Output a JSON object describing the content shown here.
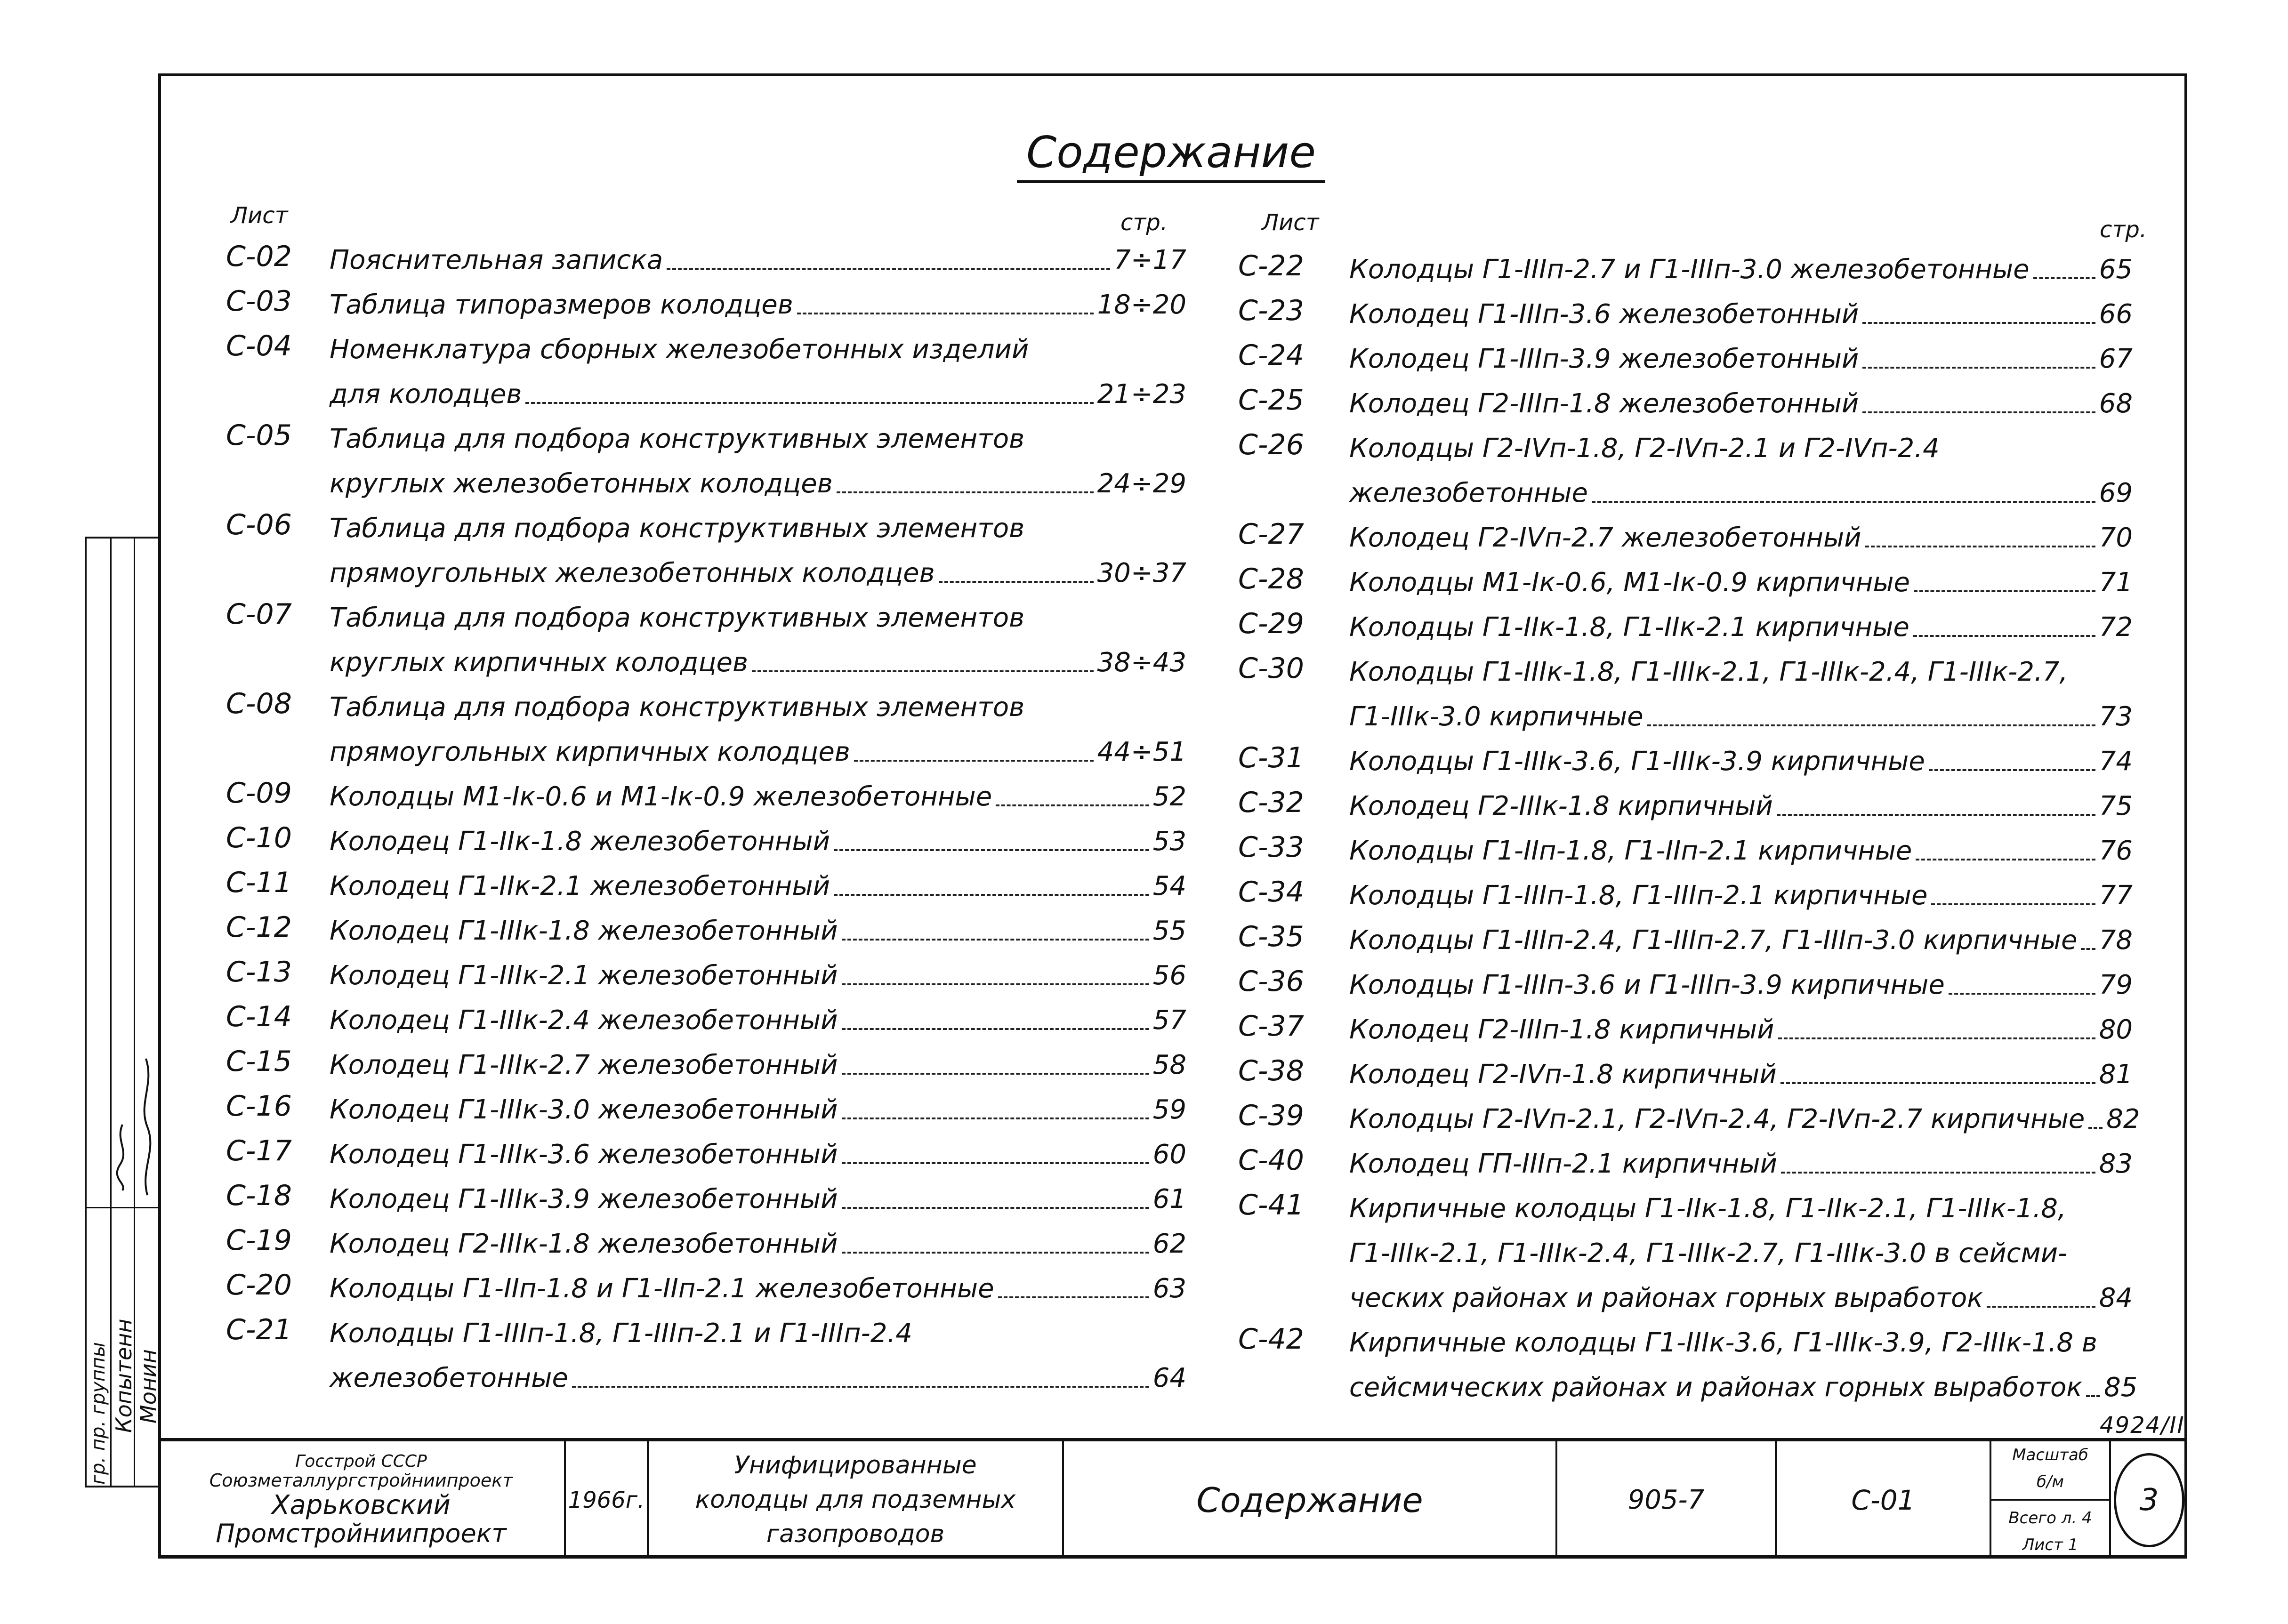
{
  "title": "Содержание",
  "headers": {
    "sheet": "Лист",
    "page": "стр."
  },
  "left_rows": [
    {
      "code": "С-02",
      "text": "Пояснительная записка",
      "page": "7÷17"
    },
    {
      "code": "С-03",
      "text": "Таблица типоразмеров колодцев",
      "page": "18÷20"
    },
    {
      "code": "С-04",
      "text": "Номенклатура сборных железобетонных изделий",
      "page": ""
    },
    {
      "code": "",
      "text": "для колодцев",
      "page": "21÷23"
    },
    {
      "code": "С-05",
      "text": "Таблица для подбора конструктивных элементов",
      "page": ""
    },
    {
      "code": "",
      "text": "круглых железобетонных колодцев",
      "page": "24÷29"
    },
    {
      "code": "С-06",
      "text": "Таблица для подбора конструктивных элементов",
      "page": ""
    },
    {
      "code": "",
      "text": "прямоугольных железобетонных колодцев",
      "page": "30÷37"
    },
    {
      "code": "С-07",
      "text": "Таблица для подбора конструктивных элементов",
      "page": ""
    },
    {
      "code": "",
      "text": "круглых кирпичных колодцев",
      "page": "38÷43"
    },
    {
      "code": "С-08",
      "text": "Таблица для подбора конструктивных элементов",
      "page": ""
    },
    {
      "code": "",
      "text": "прямоугольных кирпичных колодцев",
      "page": "44÷51"
    },
    {
      "code": "С-09",
      "text": "Колодцы М1-Iк-0.6 и М1-Iк-0.9 железобетонные",
      "page": "52"
    },
    {
      "code": "С-10",
      "text": "Колодец Г1-IIк-1.8 железобетонный",
      "page": "53"
    },
    {
      "code": "С-11",
      "text": "Колодец Г1-IIк-2.1 железобетонный",
      "page": "54"
    },
    {
      "code": "С-12",
      "text": "Колодец Г1-IIIк-1.8 железобетонный",
      "page": "55"
    },
    {
      "code": "С-13",
      "text": "Колодец Г1-IIIк-2.1 железобетонный",
      "page": "56"
    },
    {
      "code": "С-14",
      "text": "Колодец Г1-IIIк-2.4 железобетонный",
      "page": "57"
    },
    {
      "code": "С-15",
      "text": "Колодец Г1-IIIк-2.7 железобетонный",
      "page": "58"
    },
    {
      "code": "С-16",
      "text": "Колодец Г1-IIIк-3.0 железобетонный",
      "page": "59"
    },
    {
      "code": "С-17",
      "text": "Колодец Г1-IIIк-3.6 железобетонный",
      "page": "60"
    },
    {
      "code": "С-18",
      "text": "Колодец Г1-IIIк-3.9 железобетонный",
      "page": "61"
    },
    {
      "code": "С-19",
      "text": "Колодец Г2-IIIк-1.8 железобетонный",
      "page": "62"
    },
    {
      "code": "С-20",
      "text": "Колодцы Г1-IIп-1.8 и Г1-IIп-2.1 железобетонные",
      "page": "63"
    },
    {
      "code": "С-21",
      "text": "Колодцы Г1-IIIп-1.8, Г1-IIIп-2.1 и Г1-IIIп-2.4",
      "page": ""
    },
    {
      "code": "",
      "text": "железобетонные",
      "page": "64"
    }
  ],
  "right_rows": [
    {
      "code": "С-22",
      "text": "Колодцы Г1-IIIп-2.7 и Г1-IIIп-3.0 железобетонные",
      "page": "65"
    },
    {
      "code": "С-23",
      "text": "Колодец Г1-IIIп-3.6 железобетонный",
      "page": "66"
    },
    {
      "code": "С-24",
      "text": "Колодец Г1-IIIп-3.9 железобетонный",
      "page": "67"
    },
    {
      "code": "С-25",
      "text": "Колодец Г2-IIIп-1.8 железобетонный",
      "page": "68"
    },
    {
      "code": "С-26",
      "text": "Колодцы Г2-IVп-1.8, Г2-IVп-2.1 и Г2-IVп-2.4",
      "page": ""
    },
    {
      "code": "",
      "text": "железобетонные",
      "page": "69"
    },
    {
      "code": "С-27",
      "text": "Колодец Г2-IVп-2.7 железобетонный",
      "page": "70"
    },
    {
      "code": "С-28",
      "text": "Колодцы М1-Iк-0.6, М1-Iк-0.9 кирпичные",
      "page": "71"
    },
    {
      "code": "С-29",
      "text": "Колодцы Г1-IIк-1.8, Г1-IIк-2.1 кирпичные",
      "page": "72"
    },
    {
      "code": "С-30",
      "text": "Колодцы Г1-IIIк-1.8, Г1-IIIк-2.1, Г1-IIIк-2.4, Г1-IIIк-2.7,",
      "page": ""
    },
    {
      "code": "",
      "text": "Г1-IIIк-3.0 кирпичные",
      "page": "73"
    },
    {
      "code": "С-31",
      "text": "Колодцы Г1-IIIк-3.6, Г1-IIIк-3.9 кирпичные",
      "page": "74"
    },
    {
      "code": "С-32",
      "text": "Колодец Г2-IIIк-1.8 кирпичный",
      "page": "75"
    },
    {
      "code": "С-33",
      "text": "Колодцы Г1-IIп-1.8, Г1-IIп-2.1 кирпичные",
      "page": "76"
    },
    {
      "code": "С-34",
      "text": "Колодцы Г1-IIIп-1.8, Г1-IIIп-2.1 кирпичные",
      "page": "77"
    },
    {
      "code": "С-35",
      "text": "Колодцы Г1-IIIп-2.4, Г1-IIIп-2.7, Г1-IIIп-3.0 кирпичные",
      "page": "78"
    },
    {
      "code": "С-36",
      "text": "Колодцы Г1-IIIп-3.6 и Г1-IIIп-3.9 кирпичные",
      "page": "79"
    },
    {
      "code": "С-37",
      "text": "Колодец Г2-IIIп-1.8 кирпичный",
      "page": "80"
    },
    {
      "code": "С-38",
      "text": "Колодец Г2-IVп-1.8 кирпичный",
      "page": "81"
    },
    {
      "code": "С-39",
      "text": "Колодцы Г2-IVп-2.1, Г2-IVп-2.4, Г2-IVп-2.7 кирпичные",
      "page": "82"
    },
    {
      "code": "С-40",
      "text": "Колодец ГП-IIIп-2.1 кирпичный",
      "page": "83"
    },
    {
      "code": "С-41",
      "text": "Кирпичные колодцы Г1-IIк-1.8, Г1-IIк-2.1, Г1-IIIк-1.8,",
      "page": ""
    },
    {
      "code": "",
      "text": "Г1-IIIк-2.1, Г1-IIIк-2.4, Г1-IIIк-2.7, Г1-IIIк-3.0 в сейсми-",
      "page": ""
    },
    {
      "code": "",
      "text": "ческих районах и районах горных выработок",
      "page": "84"
    },
    {
      "code": "С-42",
      "text": "Кирпичные колодцы Г1-IIIк-3.6, Г1-IIIк-3.9, Г2-IIIк-1.8 в",
      "page": ""
    },
    {
      "code": "",
      "text": "сейсмических районах и районах горных выработок",
      "page": "85"
    }
  ],
  "side_stamp": {
    "labels": [
      "гр. пр. группы",
      "Копытенн",
      "Монин"
    ]
  },
  "archive_number": "4924/II",
  "title_block": {
    "org_line1": "Госстрой СССР",
    "org_line2": "Союзметаллургстройниипроект",
    "org_line3": "Харьковский",
    "org_line4": "Промстройниипроект",
    "year": "1966г.",
    "project_line1": "Унифицированные",
    "project_line2": "колодцы для подземных",
    "project_line3": "газопроводов",
    "sheet_title": "Содержание",
    "series": "905-7",
    "sheet_code": "С-01",
    "scale_label": "Масштаб",
    "scale_value": "б/м",
    "total_label": "Всего л. 4",
    "sheet_label": "Лист 1",
    "page_number": "3"
  }
}
